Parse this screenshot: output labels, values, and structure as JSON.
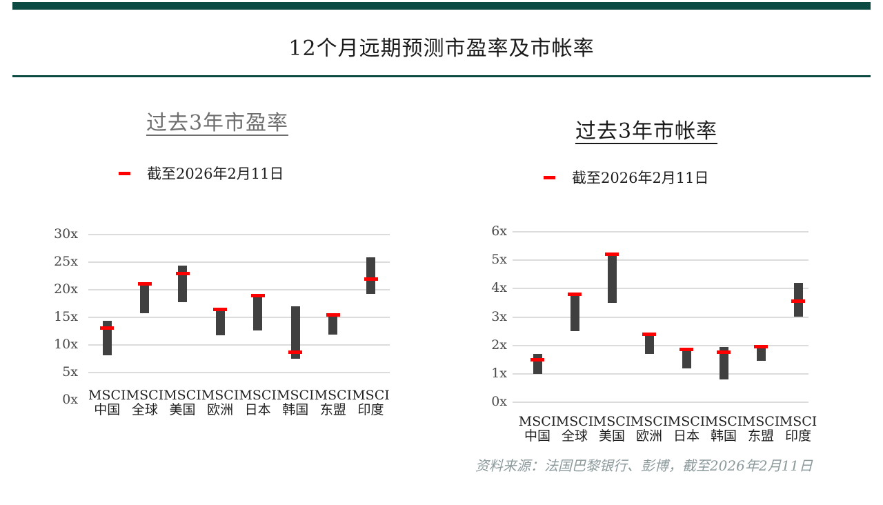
{
  "header": {
    "title": "12个月远期预测市盈率及市帐率"
  },
  "footer": {
    "source": "资料来源：法国巴黎银行、彭博，截至2026年2月11日"
  },
  "colors": {
    "accent_teal": "#0b4a42",
    "bar_gray": "#404040",
    "marker_red": "#fe0000",
    "gridline_gray": "#dcdcdc",
    "left_title_gray": "#6e6e6e",
    "footer_gray": "#8d9a9c"
  },
  "chart_data": [
    {
      "type": "bar",
      "subtype": "floating-range-bar-with-current-marker",
      "title": "过去3年市盈率",
      "current_label": "截至2026年2月11日",
      "legend_position": "top",
      "grid": "horizontal",
      "categories": [
        "MSCI 中国",
        "MSCI 全球",
        "MSCI 美国",
        "MSCI 欧洲",
        "MSCI 日本",
        "MSCI 韩国",
        "MSCI 东盟",
        "MSCI 印度"
      ],
      "categories_lines": [
        [
          "MSCI",
          "中国"
        ],
        [
          "MSCI",
          "全球"
        ],
        [
          "MSCI",
          "美国"
        ],
        [
          "MSCI",
          "欧洲"
        ],
        [
          "MSCI",
          "日本"
        ],
        [
          "MSCI",
          "韩国"
        ],
        [
          "MSCI",
          "东盟"
        ],
        [
          "MSCI",
          "印度"
        ]
      ],
      "ylim": [
        0,
        30
      ],
      "yticks": [
        {
          "value": 0,
          "label": "0x"
        },
        {
          "value": 5,
          "label": "5x"
        },
        {
          "value": 10,
          "label": "10x"
        },
        {
          "value": 15,
          "label": "15x"
        },
        {
          "value": 20,
          "label": "20x"
        },
        {
          "value": 25,
          "label": "25x"
        },
        {
          "value": 30,
          "label": "30x"
        }
      ],
      "zero_gridline": false,
      "range_low": [
        8.1,
        15.7,
        17.7,
        11.7,
        12.6,
        7.5,
        11.9,
        19.3
      ],
      "range_high": [
        14.4,
        21.0,
        24.4,
        16.3,
        18.9,
        17.0,
        15.4,
        25.9
      ],
      "current": [
        13.1,
        21.1,
        23.0,
        16.5,
        19.0,
        8.7,
        15.5,
        22.0
      ]
    },
    {
      "type": "bar",
      "subtype": "floating-range-bar-with-current-marker",
      "title": "过去3年市帐率",
      "current_label": "截至2026年2月11日",
      "legend_position": "top",
      "grid": "horizontal",
      "categories": [
        "MSCI 中国",
        "MSCI 全球",
        "MSCI 美国",
        "MSCI 欧洲",
        "MSCI 日本",
        "MSCI 韩国",
        "MSCI 东盟",
        "MSCI 印度"
      ],
      "categories_lines": [
        [
          "MSCI",
          "中国"
        ],
        [
          "MSCI",
          "全球"
        ],
        [
          "MSCI",
          "美国"
        ],
        [
          "MSCI",
          "欧洲"
        ],
        [
          "MSCI",
          "日本"
        ],
        [
          "MSCI",
          "韩国"
        ],
        [
          "MSCI",
          "东盟"
        ],
        [
          "MSCI",
          "印度"
        ]
      ],
      "ylim": [
        0,
        6
      ],
      "yticks": [
        {
          "value": 0,
          "label": "0x"
        },
        {
          "value": 1,
          "label": "1x"
        },
        {
          "value": 2,
          "label": "2x"
        },
        {
          "value": 3,
          "label": "3x"
        },
        {
          "value": 4,
          "label": "4x"
        },
        {
          "value": 5,
          "label": "5x"
        },
        {
          "value": 6,
          "label": "6x"
        }
      ],
      "zero_gridline": true,
      "range_low": [
        1.0,
        2.5,
        3.5,
        1.7,
        1.2,
        0.8,
        1.45,
        3.0
      ],
      "range_high": [
        1.7,
        3.75,
        5.15,
        2.35,
        1.8,
        1.95,
        1.9,
        4.2
      ],
      "current": [
        1.5,
        3.8,
        5.2,
        2.4,
        1.85,
        1.75,
        1.95,
        3.55
      ]
    }
  ]
}
